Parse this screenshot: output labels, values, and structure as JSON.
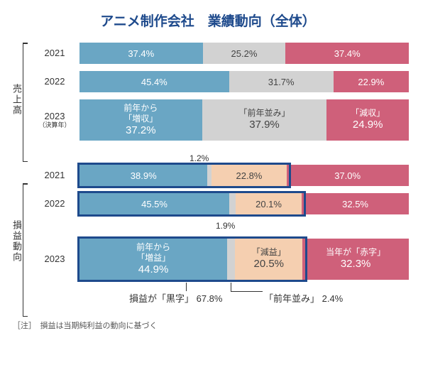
{
  "title": "アニメ制作会社　業績動向（全体）",
  "colors": {
    "blue": "#6aa6c4",
    "gray": "#d2d2d2",
    "red": "#cf607a",
    "peach": "#f5cfb0",
    "white_text": "#ffffff",
    "dark_text": "#444444",
    "outline": "#1e4a8c"
  },
  "section1": {
    "label": "売上高",
    "rows": [
      {
        "year": "2021",
        "segs": [
          {
            "w": 37.4,
            "color": "blue",
            "text": "37.4%",
            "tc": "white_text"
          },
          {
            "w": 25.2,
            "color": "gray",
            "text": "25.2%",
            "tc": "dark_text"
          },
          {
            "w": 37.4,
            "color": "red",
            "text": "37.4%",
            "tc": "white_text"
          }
        ]
      },
      {
        "year": "2022",
        "segs": [
          {
            "w": 45.4,
            "color": "blue",
            "text": "45.4%",
            "tc": "white_text"
          },
          {
            "w": 31.7,
            "color": "gray",
            "text": "31.7%",
            "tc": "dark_text"
          },
          {
            "w": 22.9,
            "color": "red",
            "text": "22.9%",
            "tc": "white_text"
          }
        ]
      },
      {
        "year": "2023",
        "year_sub": "（決算年）",
        "big": true,
        "segs": [
          {
            "w": 37.2,
            "color": "blue",
            "tc": "white_text",
            "lbl": "前年から\n「増収」",
            "pct": "37.2%"
          },
          {
            "w": 37.9,
            "color": "gray",
            "tc": "dark_text",
            "lbl": "「前年並み」",
            "pct": "37.9%"
          },
          {
            "w": 24.9,
            "color": "red",
            "tc": "white_text",
            "lbl": "「減収」",
            "pct": "24.9%"
          }
        ]
      }
    ]
  },
  "section2": {
    "label": "損益動向",
    "callout_top_2021": "1.2%",
    "callout_top_2022": "1.9%",
    "rows": [
      {
        "year": "2021",
        "outline_to": 62.9,
        "segs": [
          {
            "w": 38.9,
            "color": "blue",
            "text": "38.9%",
            "tc": "white_text"
          },
          {
            "w": 1.2,
            "color": "gray",
            "text": "",
            "tc": "dark_text"
          },
          {
            "w": 22.8,
            "color": "peach",
            "text": "22.8%",
            "tc": "dark_text"
          },
          {
            "w": 37.0,
            "color": "red",
            "text": "37.0%",
            "tc": "white_text"
          }
        ]
      },
      {
        "year": "2022",
        "outline_to": 67.5,
        "segs": [
          {
            "w": 45.5,
            "color": "blue",
            "text": "45.5%",
            "tc": "white_text"
          },
          {
            "w": 1.9,
            "color": "gray",
            "text": "",
            "tc": "dark_text"
          },
          {
            "w": 20.1,
            "color": "peach",
            "text": "20.1%",
            "tc": "dark_text"
          },
          {
            "w": 32.5,
            "color": "red",
            "text": "32.5%",
            "tc": "white_text"
          }
        ]
      },
      {
        "year": "2023",
        "big": true,
        "outline_to": 67.8,
        "segs": [
          {
            "w": 44.9,
            "color": "blue",
            "tc": "white_text",
            "lbl": "前年から\n「増益」",
            "pct": "44.9%"
          },
          {
            "w": 2.4,
            "color": "gray",
            "tc": "dark_text",
            "lbl": "",
            "pct": ""
          },
          {
            "w": 20.5,
            "color": "peach",
            "tc": "dark_text",
            "lbl": "「減益」",
            "pct": "20.5%"
          },
          {
            "w": 32.3,
            "color": "red",
            "tc": "white_text",
            "lbl": "当年が「赤字」",
            "pct": "32.3%"
          }
        ]
      }
    ],
    "bottom_left": "損益が「黒字」 67.8%",
    "bottom_right": "「前年並み」 2.4%"
  },
  "note": "［注］　損益は当期純利益の動向に基づく"
}
